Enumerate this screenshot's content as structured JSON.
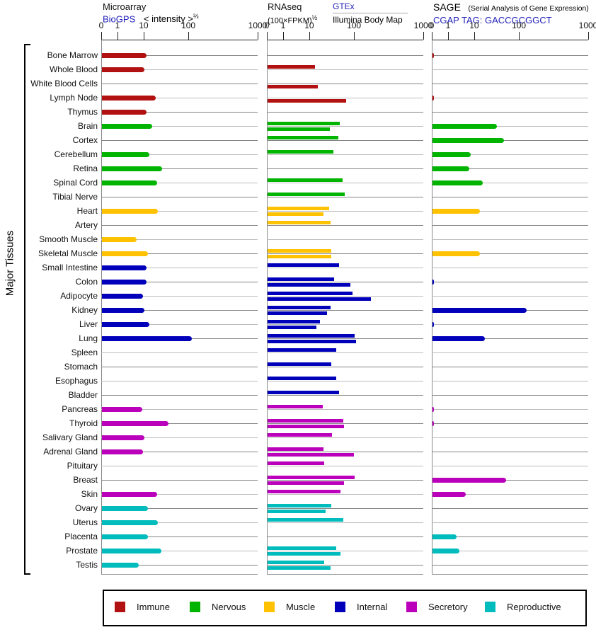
{
  "headers": {
    "microarray": {
      "title": "Microarray",
      "link": "BioGPS",
      "metric": "< intensity >",
      "metric_sup": "⅔"
    },
    "rnaseq": {
      "title": "RNAseq",
      "metric": "(100×FPKM)",
      "metric_sup": "½",
      "source1": "GTEx",
      "source2": "Illumina Body Map"
    },
    "sage": {
      "title": "SAGE",
      "note": "(Serial Analysis of Gene Expression)",
      "link": "CGAP",
      "tag": "TAG: GACCGCGGCT"
    }
  },
  "y_axis_label": "Major Tissues",
  "legend": {
    "items": [
      {
        "label": "Immune",
        "color": "#b21111"
      },
      {
        "label": "Nervous",
        "color": "#00b400"
      },
      {
        "label": "Muscle",
        "color": "#ffc200"
      },
      {
        "label": "Internal",
        "color": "#0000bb"
      },
      {
        "label": "Secretory",
        "color": "#bb00bb"
      },
      {
        "label": "Reproductive",
        "color": "#00bcbc"
      }
    ]
  },
  "chart_data": {
    "type": "bar",
    "orientation": "horizontal",
    "x_ticks": [
      "0",
      "1",
      "10",
      "100",
      "1000"
    ],
    "x_axis_note": "non-linear power scale, ticks at 0/1/10/100/1000; Microarray = < intensity >^(2/3), RNAseq = (100×FPKM)^(1/2), SAGE = tags",
    "grid": "horizontal row lines, alternating gray shades",
    "legend_position": "bottom",
    "panels": [
      {
        "id": "microarray",
        "title": "Microarray",
        "source": "BioGPS",
        "series_keys": [
          "microarray"
        ]
      },
      {
        "id": "rnaseq",
        "title": "RNAseq",
        "sources": [
          "GTEx",
          "Illumina Body Map"
        ],
        "series_keys": [
          "rnaseq_gtex",
          "rnaseq_illumina"
        ]
      },
      {
        "id": "sage",
        "title": "SAGE",
        "source": "CGAP TAG: GACCGCGGCT",
        "series_keys": [
          "sage"
        ]
      }
    ],
    "group_colors": {
      "Immune": "#b21111",
      "Nervous": "#00b400",
      "Muscle": "#ffc200",
      "Internal": "#0000bb",
      "Secretory": "#bb00bb",
      "Reproductive": "#00bcbc"
    },
    "tissues": [
      {
        "name": "Bone Marrow",
        "group": "Immune",
        "microarray": 11,
        "rnaseq_gtex": null,
        "rnaseq_illumina": null,
        "sage": 0.1
      },
      {
        "name": "Whole Blood",
        "group": "Immune",
        "microarray": 10,
        "rnaseq_gtex": 13,
        "rnaseq_illumina": null,
        "sage": null
      },
      {
        "name": "White Blood Cells",
        "group": "Immune",
        "microarray": null,
        "rnaseq_gtex": null,
        "rnaseq_illumina": 15,
        "sage": null
      },
      {
        "name": "Lymph Node",
        "group": "Immune",
        "microarray": 18,
        "rnaseq_gtex": null,
        "rnaseq_illumina": 65,
        "sage": 0.1
      },
      {
        "name": "Thymus",
        "group": "Immune",
        "microarray": 11,
        "rnaseq_gtex": null,
        "rnaseq_illumina": null,
        "sage": null
      },
      {
        "name": "Brain",
        "group": "Nervous",
        "microarray": 15,
        "rnaseq_gtex": 46,
        "rnaseq_illumina": 28,
        "sage": 31
      },
      {
        "name": "Cortex",
        "group": "Nervous",
        "microarray": null,
        "rnaseq_gtex": 43,
        "rnaseq_illumina": null,
        "sage": 45
      },
      {
        "name": "Cerebellum",
        "group": "Nervous",
        "microarray": 13,
        "rnaseq_gtex": 33,
        "rnaseq_illumina": null,
        "sage": 7
      },
      {
        "name": "Retina",
        "group": "Nervous",
        "microarray": 25,
        "rnaseq_gtex": null,
        "rnaseq_illumina": null,
        "sage": 6
      },
      {
        "name": "Spinal Cord",
        "group": "Nervous",
        "microarray": 19,
        "rnaseq_gtex": 53,
        "rnaseq_illumina": null,
        "sage": 15
      },
      {
        "name": "Tibial Nerve",
        "group": "Nervous",
        "microarray": null,
        "rnaseq_gtex": 60,
        "rnaseq_illumina": null,
        "sage": null
      },
      {
        "name": "Heart",
        "group": "Muscle",
        "microarray": 20,
        "rnaseq_gtex": 27,
        "rnaseq_illumina": 20,
        "sage": 13
      },
      {
        "name": "Artery",
        "group": "Muscle",
        "microarray": null,
        "rnaseq_gtex": 29,
        "rnaseq_illumina": null,
        "sage": null
      },
      {
        "name": "Smooth Muscle",
        "group": "Muscle",
        "microarray": 5,
        "rnaseq_gtex": null,
        "rnaseq_illumina": null,
        "sage": null
      },
      {
        "name": "Skeletal Muscle",
        "group": "Muscle",
        "microarray": 12,
        "rnaseq_gtex": 30,
        "rnaseq_illumina": 30,
        "sage": 13
      },
      {
        "name": "Small Intestine",
        "group": "Internal",
        "microarray": 11,
        "rnaseq_gtex": 44,
        "rnaseq_illumina": null,
        "sage": null
      },
      {
        "name": "Colon",
        "group": "Internal",
        "microarray": 11,
        "rnaseq_gtex": 35,
        "rnaseq_illumina": 80,
        "sage": 0.1
      },
      {
        "name": "Adipocyte",
        "group": "Internal",
        "microarray": 9,
        "rnaseq_gtex": 90,
        "rnaseq_illumina": 170,
        "sage": null
      },
      {
        "name": "Kidney",
        "group": "Internal",
        "microarray": 10,
        "rnaseq_gtex": 29,
        "rnaseq_illumina": 24,
        "sage": 125
      },
      {
        "name": "Liver",
        "group": "Internal",
        "microarray": 13,
        "rnaseq_gtex": 17,
        "rnaseq_illumina": 14,
        "sage": 0.1
      },
      {
        "name": "Lung",
        "group": "Internal",
        "microarray": 110,
        "rnaseq_gtex": 100,
        "rnaseq_illumina": 105,
        "sage": 17
      },
      {
        "name": "Spleen",
        "group": "Internal",
        "microarray": null,
        "rnaseq_gtex": 39,
        "rnaseq_illumina": null,
        "sage": null
      },
      {
        "name": "Stomach",
        "group": "Internal",
        "microarray": null,
        "rnaseq_gtex": 30,
        "rnaseq_illumina": null,
        "sage": null
      },
      {
        "name": "Esophagus",
        "group": "Internal",
        "microarray": null,
        "rnaseq_gtex": 39,
        "rnaseq_illumina": null,
        "sage": null
      },
      {
        "name": "Bladder",
        "group": "Internal",
        "microarray": null,
        "rnaseq_gtex": 44,
        "rnaseq_illumina": null,
        "sage": null
      },
      {
        "name": "Pancreas",
        "group": "Secretory",
        "microarray": 8.5,
        "rnaseq_gtex": 19,
        "rnaseq_illumina": null,
        "sage": 0.1
      },
      {
        "name": "Thyroid",
        "group": "Secretory",
        "microarray": 35,
        "rnaseq_gtex": 56,
        "rnaseq_illumina": 58,
        "sage": 0.1
      },
      {
        "name": "Salivary Gland",
        "group": "Secretory",
        "microarray": 10,
        "rnaseq_gtex": 31,
        "rnaseq_illumina": null,
        "sage": null
      },
      {
        "name": "Adrenal Gland",
        "group": "Secretory",
        "microarray": 9,
        "rnaseq_gtex": 20,
        "rnaseq_illumina": 97,
        "sage": null
      },
      {
        "name": "Pituitary",
        "group": "Secretory",
        "microarray": null,
        "rnaseq_gtex": 21,
        "rnaseq_illumina": null,
        "sage": null
      },
      {
        "name": "Breast",
        "group": "Secretory",
        "microarray": null,
        "rnaseq_gtex": 100,
        "rnaseq_illumina": 58,
        "sage": 50
      },
      {
        "name": "Skin",
        "group": "Secretory",
        "microarray": 19,
        "rnaseq_gtex": 48,
        "rnaseq_illumina": null,
        "sage": 4.5
      },
      {
        "name": "Ovary",
        "group": "Reproductive",
        "microarray": 12,
        "rnaseq_gtex": 30,
        "rnaseq_illumina": 22,
        "sage": null
      },
      {
        "name": "Uterus",
        "group": "Reproductive",
        "microarray": 20,
        "rnaseq_gtex": 56,
        "rnaseq_illumina": null,
        "sage": null
      },
      {
        "name": "Placenta",
        "group": "Reproductive",
        "microarray": 12,
        "rnaseq_gtex": null,
        "rnaseq_illumina": null,
        "sage": 2
      },
      {
        "name": "Prostate",
        "group": "Reproductive",
        "microarray": 24,
        "rnaseq_gtex": 39,
        "rnaseq_illumina": 48,
        "sage": 2.5
      },
      {
        "name": "Testis",
        "group": "Reproductive",
        "microarray": 6,
        "rnaseq_gtex": 21,
        "rnaseq_illumina": 29,
        "sage": null
      }
    ]
  }
}
